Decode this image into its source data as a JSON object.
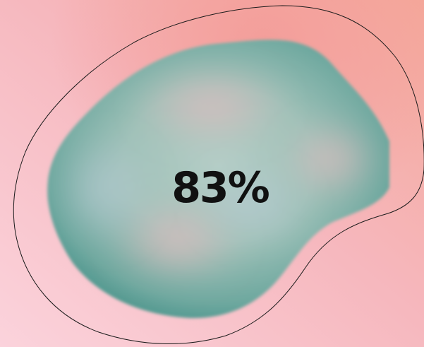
{
  "progress": {
    "label": "83%",
    "value": 0.83
  },
  "colors": {
    "background_pink": "#f7bcc6",
    "background_salmon": "#f4a8a4",
    "blob_teal": "#4e9990",
    "blob_highlight": "#a9c8c0",
    "outline": "#1a1a1a",
    "text": "#111111"
  }
}
